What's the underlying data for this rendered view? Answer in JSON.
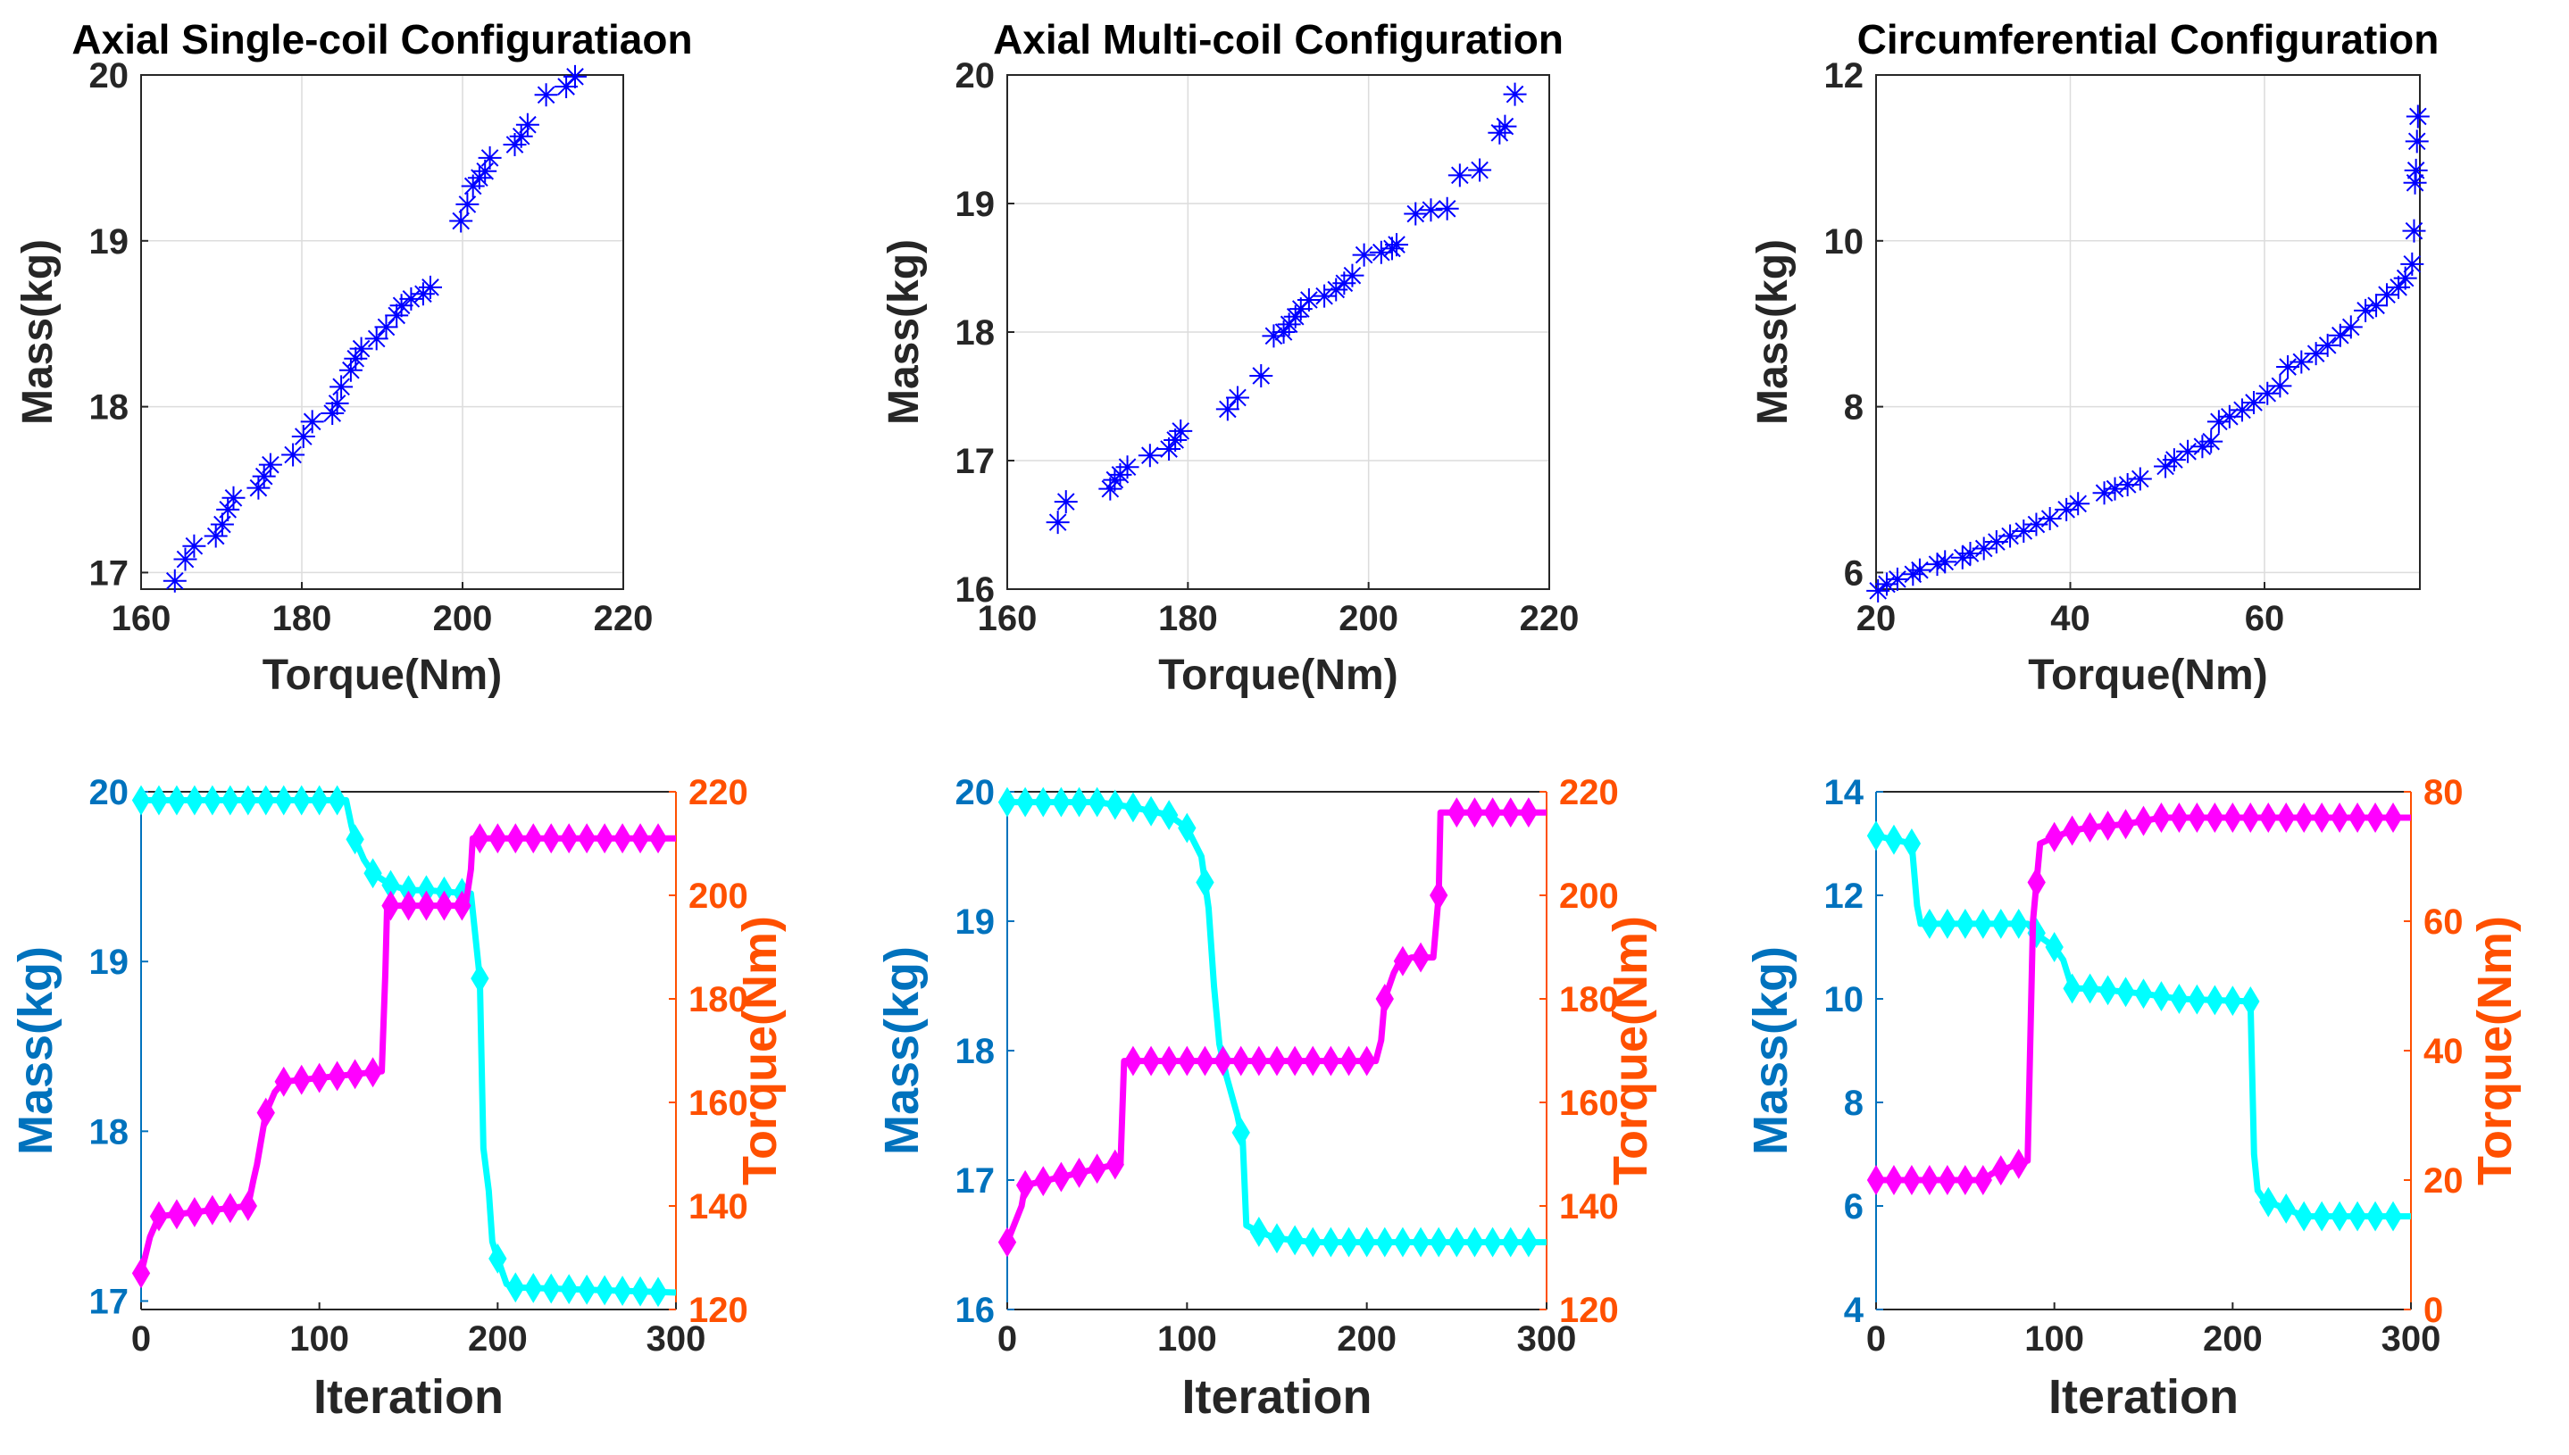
{
  "colors": {
    "scatter": "#0000ff",
    "mass_line": "#00ffff",
    "torque_line": "#ff00ff",
    "mass_axis": "#0072bd",
    "torque_axis": "#ff5000"
  },
  "chart_data": [
    {
      "type": "scatter",
      "title": "Axial Single-coil Configuratiaon",
      "xlabel": "Torque(Nm)",
      "ylabel": "Mass(kg)",
      "xlim": [
        160,
        220
      ],
      "ylim": [
        16.9,
        20
      ],
      "xticks": [
        160,
        180,
        200,
        220
      ],
      "yticks": [
        17,
        18,
        19,
        20
      ],
      "grid": true,
      "marker": "asterisk",
      "x": [
        164.2,
        165.5,
        166.6,
        169.3,
        170.1,
        170.8,
        171.5,
        174.6,
        175.3,
        176.1,
        178.9,
        180.2,
        181.3,
        183.8,
        184.4,
        184.9,
        186.1,
        186.7,
        187.4,
        189.3,
        190.5,
        191.8,
        192.4,
        193.6,
        195.1,
        196.0,
        199.8,
        200.6,
        201.3,
        202.1,
        202.8,
        203.4,
        206.5,
        207.3,
        208.1,
        210.4,
        212.9,
        214.0
      ],
      "y": [
        16.95,
        17.08,
        17.16,
        17.22,
        17.29,
        17.38,
        17.45,
        17.51,
        17.58,
        17.65,
        17.71,
        17.82,
        17.91,
        17.96,
        18.02,
        18.12,
        18.22,
        18.29,
        18.35,
        18.41,
        18.48,
        18.55,
        18.61,
        18.65,
        18.68,
        18.72,
        19.12,
        19.22,
        19.33,
        19.38,
        19.42,
        19.5,
        19.58,
        19.63,
        19.7,
        19.88,
        19.93,
        19.99
      ]
    },
    {
      "type": "scatter",
      "title": "Axial Multi-coil Configuration",
      "xlabel": "Torque(Nm)",
      "ylabel": "Mass(kg)",
      "xlim": [
        160,
        220
      ],
      "ylim": [
        16,
        20
      ],
      "xticks": [
        160,
        180,
        200,
        220
      ],
      "yticks": [
        16,
        17,
        18,
        19,
        20
      ],
      "grid": true,
      "marker": "asterisk",
      "x": [
        165.6,
        166.5,
        171.4,
        171.9,
        172.5,
        173.3,
        175.8,
        177.9,
        178.6,
        179.2,
        184.4,
        185.5,
        188.1,
        189.5,
        190.6,
        191.2,
        191.9,
        192.5,
        193.4,
        195.1,
        196.4,
        197.3,
        198.2,
        199.5,
        201.4,
        202.6,
        203.1,
        205.2,
        206.9,
        208.7,
        210.1,
        212.3,
        214.5,
        215.1,
        216.2
      ],
      "y": [
        16.52,
        16.68,
        16.78,
        16.85,
        16.89,
        16.95,
        17.04,
        17.09,
        17.16,
        17.23,
        17.4,
        17.49,
        17.66,
        17.97,
        18.0,
        18.06,
        18.12,
        18.18,
        18.25,
        18.28,
        18.33,
        18.38,
        18.44,
        18.6,
        18.62,
        18.65,
        18.68,
        18.92,
        18.95,
        18.96,
        19.22,
        19.26,
        19.55,
        19.6,
        19.85
      ]
    },
    {
      "type": "scatter",
      "title": "Circumferential Configuration",
      "xlabel": "Torque(Nm)",
      "ylabel": "Mass(kg)",
      "xlim": [
        20,
        76
      ],
      "ylim": [
        5.8,
        12
      ],
      "xticks": [
        20,
        40,
        60
      ],
      "yticks": [
        6,
        8,
        10,
        12
      ],
      "grid": true,
      "marker": "asterisk",
      "x": [
        20.2,
        21.1,
        22.2,
        23.8,
        24.5,
        26.3,
        27.1,
        28.9,
        29.7,
        31.1,
        32.4,
        33.8,
        35.2,
        36.5,
        37.9,
        39.6,
        40.8,
        43.5,
        44.6,
        45.9,
        47.2,
        49.8,
        50.7,
        52.1,
        53.6,
        54.5,
        55.3,
        56.4,
        57.7,
        58.9,
        60.3,
        61.6,
        62.4,
        63.8,
        65.3,
        66.5,
        67.8,
        68.9,
        70.4,
        71.5,
        72.6,
        73.8,
        74.5,
        75.2,
        75.4,
        75.5,
        75.6,
        75.7,
        75.8
      ],
      "y": [
        5.78,
        5.86,
        5.92,
        5.98,
        6.03,
        6.1,
        6.13,
        6.18,
        6.23,
        6.29,
        6.37,
        6.44,
        6.5,
        6.58,
        6.65,
        6.76,
        6.83,
        6.96,
        7.01,
        7.06,
        7.13,
        7.28,
        7.36,
        7.46,
        7.52,
        7.58,
        7.82,
        7.88,
        7.96,
        8.05,
        8.16,
        8.25,
        8.48,
        8.54,
        8.64,
        8.74,
        8.86,
        8.96,
        9.16,
        9.22,
        9.35,
        9.44,
        9.55,
        9.72,
        10.12,
        10.7,
        10.85,
        11.2,
        11.5
      ]
    },
    {
      "type": "line",
      "xlabel": "Iteration",
      "ylabel": "Mass(kg)",
      "y2label": "Torque(Nm)",
      "xlim": [
        0,
        300
      ],
      "ylim": [
        16.95,
        20
      ],
      "y2lim": [
        120,
        220
      ],
      "xticks": [
        0,
        100,
        200,
        300
      ],
      "yticks": [
        17,
        18,
        19,
        20
      ],
      "y2ticks": [
        120,
        140,
        160,
        180,
        200,
        220
      ],
      "grid": false,
      "series": [
        {
          "name": "Mass",
          "axis": "left",
          "marker": "diamond",
          "x": [
            0,
            115,
            118,
            120,
            125,
            130,
            140,
            150,
            160,
            185,
            188,
            190,
            192,
            195,
            197,
            200,
            205,
            210,
            300
          ],
          "y": [
            19.95,
            19.95,
            19.8,
            19.72,
            19.6,
            19.52,
            19.45,
            19.42,
            19.42,
            19.4,
            19.1,
            18.9,
            17.9,
            17.65,
            17.35,
            17.25,
            17.1,
            17.08,
            17.05
          ]
        },
        {
          "name": "Torque",
          "axis": "right",
          "marker": "diamond",
          "x": [
            0,
            5,
            10,
            60,
            63,
            65,
            70,
            75,
            80,
            135,
            137,
            138,
            182,
            185,
            186,
            300
          ],
          "y": [
            127,
            134,
            138,
            140,
            145,
            148,
            158,
            162,
            164,
            166,
            185,
            198,
            198,
            205,
            211,
            211
          ]
        }
      ]
    },
    {
      "type": "line",
      "xlabel": "Iteration",
      "ylabel": "Mass(kg)",
      "y2label": "Torque(Nm)",
      "xlim": [
        0,
        300
      ],
      "ylim": [
        16,
        20
      ],
      "y2lim": [
        120,
        220
      ],
      "xticks": [
        0,
        100,
        200,
        300
      ],
      "yticks": [
        16,
        17,
        18,
        19,
        20
      ],
      "y2ticks": [
        120,
        140,
        160,
        180,
        200,
        220
      ],
      "grid": false,
      "series": [
        {
          "name": "Mass",
          "axis": "left",
          "marker": "diamond",
          "x": [
            0,
            50,
            70,
            90,
            100,
            108,
            112,
            115,
            118,
            122,
            128,
            131,
            133,
            140,
            150,
            170,
            300
          ],
          "y": [
            19.92,
            19.92,
            19.88,
            19.82,
            19.72,
            19.5,
            19.1,
            18.5,
            18.05,
            17.8,
            17.5,
            17.3,
            16.65,
            16.6,
            16.55,
            16.52,
            16.52
          ]
        },
        {
          "name": "Torque",
          "axis": "right",
          "marker": "diamond",
          "x": [
            0,
            8,
            10,
            60,
            63,
            65,
            205,
            208,
            210,
            215,
            218,
            225,
            237,
            240,
            241,
            300
          ],
          "y": [
            133,
            140,
            144,
            148,
            148,
            168,
            168,
            172,
            180,
            185,
            187,
            188,
            188,
            200,
            216,
            216
          ]
        }
      ]
    },
    {
      "type": "line",
      "xlabel": "Iteration",
      "ylabel": "Mass(kg)",
      "y2label": "Torque(Nm)",
      "xlim": [
        0,
        300
      ],
      "ylim": [
        4,
        14
      ],
      "y2lim": [
        0,
        80
      ],
      "xticks": [
        0,
        100,
        200,
        300
      ],
      "yticks": [
        4,
        6,
        8,
        10,
        12,
        14
      ],
      "y2ticks": [
        0,
        20,
        40,
        60,
        80
      ],
      "grid": false,
      "series": [
        {
          "name": "Mass",
          "axis": "left",
          "marker": "diamond",
          "x": [
            0,
            20,
            23,
            25,
            30,
            85,
            92,
            100,
            105,
            110,
            120,
            150,
            170,
            210,
            212,
            214,
            218,
            230,
            240,
            300
          ],
          "y": [
            13.15,
            13.0,
            11.8,
            11.45,
            11.45,
            11.45,
            11.2,
            11.0,
            10.75,
            10.2,
            10.2,
            10.1,
            10.0,
            9.95,
            7.0,
            6.3,
            6.1,
            5.95,
            5.8,
            5.8
          ]
        },
        {
          "name": "Torque",
          "axis": "right",
          "marker": "diamond",
          "x": [
            0,
            60,
            65,
            75,
            85,
            88,
            92,
            100,
            110,
            120,
            140,
            160,
            170,
            200,
            300
          ],
          "y": [
            20,
            20,
            21,
            22,
            23,
            60,
            72,
            73,
            74,
            74.5,
            75,
            76,
            76,
            76,
            76
          ]
        }
      ]
    }
  ]
}
